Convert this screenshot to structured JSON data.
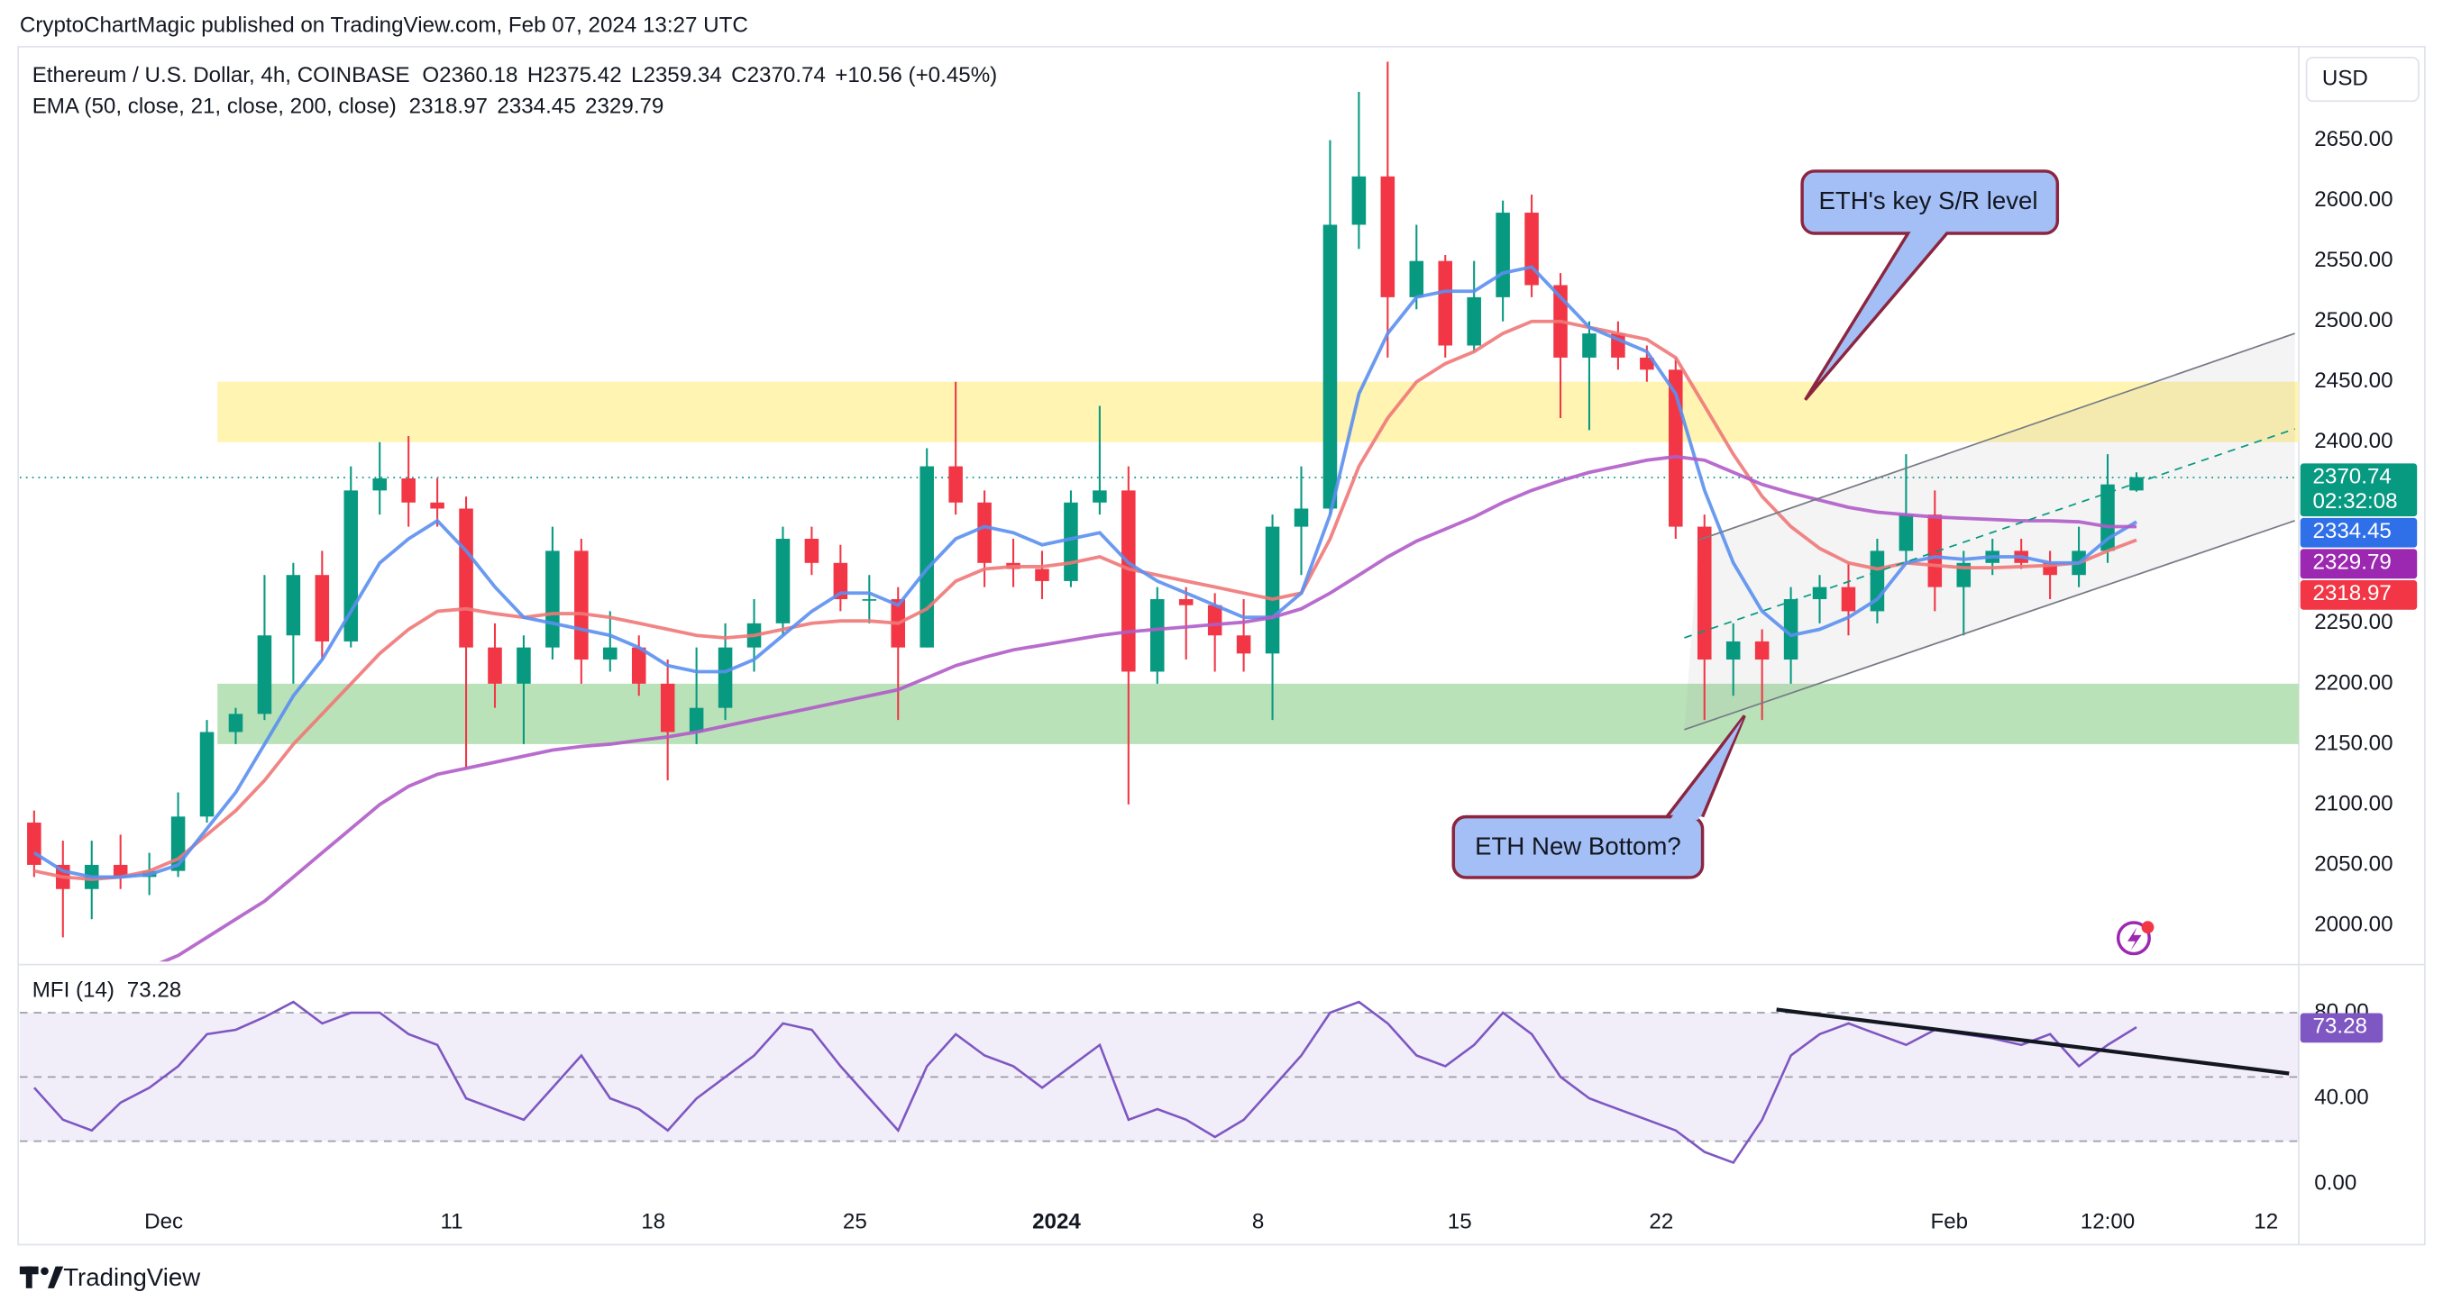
{
  "chart_data": {
    "type": "candlestick",
    "publisher": "CryptoChartMagic published on TradingView.com, Feb 07, 2024 13:27 UTC",
    "symbol": "Ethereum / U.S. Dollar, 4h, COINBASE",
    "ohlc_labels": [
      "O",
      "H",
      "L",
      "C"
    ],
    "ohlc": {
      "open": 2360.18,
      "high": 2375.42,
      "low": 2359.34,
      "close": 2370.74
    },
    "change": "+10.56 (+0.45%)",
    "ema_title": "EMA (50, close, 21, close, 200, close)",
    "currency": "USD",
    "countdown": "02:32:08",
    "brand": "TradingView",
    "up_color": "#089981",
    "down_color": "#f23645",
    "candles": {
      "open": [
        2085,
        2050,
        2030,
        2050,
        2040,
        2045,
        2090,
        2160,
        2175,
        2240,
        2290,
        2235,
        2360,
        2370,
        2350,
        2345,
        2230,
        2200,
        2230,
        2310,
        2220,
        2230,
        2200,
        2160,
        2180,
        2230,
        2250,
        2320,
        2300,
        2270,
        2270,
        2230,
        2380,
        2350,
        2300,
        2295,
        2285,
        2350,
        2360,
        2210,
        2270,
        2265,
        2240,
        2225,
        2330,
        2345,
        2580,
        2620,
        2520,
        2550,
        2480,
        2520,
        2590,
        2530,
        2470,
        2490,
        2470,
        2460,
        2330,
        2220,
        2235,
        2220,
        2270,
        2280,
        2260,
        2310,
        2340,
        2280,
        2300,
        2310,
        2300,
        2290,
        2310,
        2360
      ],
      "high": [
        2095,
        2070,
        2070,
        2075,
        2060,
        2110,
        2170,
        2180,
        2290,
        2300,
        2310,
        2380,
        2400,
        2405,
        2370,
        2355,
        2250,
        2240,
        2330,
        2320,
        2260,
        2240,
        2220,
        2230,
        2250,
        2270,
        2330,
        2330,
        2315,
        2290,
        2280,
        2395,
        2450,
        2360,
        2320,
        2310,
        2360,
        2430,
        2380,
        2280,
        2280,
        2275,
        2270,
        2340,
        2380,
        2650,
        2690,
        2715,
        2580,
        2555,
        2550,
        2600,
        2605,
        2540,
        2500,
        2500,
        2480,
        2470,
        2340,
        2250,
        2245,
        2280,
        2290,
        2300,
        2320,
        2390,
        2360,
        2310,
        2320,
        2320,
        2310,
        2330,
        2390,
        2375
      ],
      "low": [
        2040,
        1990,
        2005,
        2030,
        2025,
        2040,
        2085,
        2150,
        2170,
        2200,
        2220,
        2230,
        2340,
        2330,
        2330,
        2130,
        2180,
        2150,
        2220,
        2200,
        2210,
        2190,
        2120,
        2150,
        2170,
        2210,
        2240,
        2290,
        2260,
        2250,
        2170,
        2230,
        2340,
        2280,
        2280,
        2270,
        2280,
        2340,
        2100,
        2200,
        2220,
        2210,
        2210,
        2170,
        2290,
        2340,
        2560,
        2470,
        2510,
        2470,
        2475,
        2500,
        2520,
        2420,
        2410,
        2460,
        2450,
        2320,
        2170,
        2190,
        2170,
        2200,
        2250,
        2240,
        2250,
        2300,
        2260,
        2240,
        2290,
        2295,
        2270,
        2280,
        2300,
        2359
      ],
      "close": [
        2050,
        2030,
        2050,
        2040,
        2045,
        2090,
        2160,
        2175,
        2240,
        2290,
        2235,
        2360,
        2370,
        2350,
        2345,
        2230,
        2200,
        2230,
        2310,
        2220,
        2230,
        2200,
        2160,
        2180,
        2230,
        2250,
        2320,
        2300,
        2270,
        2270,
        2230,
        2380,
        2350,
        2300,
        2295,
        2285,
        2350,
        2360,
        2210,
        2270,
        2265,
        2240,
        2225,
        2330,
        2345,
        2580,
        2620,
        2520,
        2550,
        2480,
        2520,
        2590,
        2530,
        2470,
        2490,
        2470,
        2460,
        2330,
        2220,
        2235,
        2220,
        2270,
        2280,
        2260,
        2310,
        2340,
        2280,
        2300,
        2310,
        2300,
        2290,
        2310,
        2365,
        2371
      ]
    },
    "series": [
      {
        "name": "EMA 50",
        "color": "#f07878",
        "last": 2318.97,
        "values": [
          2045,
          2040,
          2038,
          2040,
          2045,
          2055,
          2075,
          2095,
          2120,
          2150,
          2175,
          2200,
          2225,
          2245,
          2260,
          2262,
          2258,
          2255,
          2258,
          2258,
          2255,
          2250,
          2245,
          2240,
          2238,
          2240,
          2245,
          2250,
          2252,
          2252,
          2250,
          2262,
          2285,
          2295,
          2297,
          2297,
          2300,
          2305,
          2295,
          2290,
          2285,
          2280,
          2275,
          2270,
          2275,
          2320,
          2380,
          2420,
          2450,
          2465,
          2475,
          2490,
          2500,
          2500,
          2495,
          2490,
          2485,
          2470,
          2430,
          2390,
          2355,
          2330,
          2312,
          2300,
          2295,
          2300,
          2298,
          2296,
          2296,
          2297,
          2298,
          2300,
          2310,
          2319
        ]
      },
      {
        "name": "EMA 21",
        "color": "#5b8ff0",
        "last": 2334.45,
        "values": [
          2060,
          2045,
          2040,
          2040,
          2042,
          2050,
          2080,
          2110,
          2150,
          2190,
          2220,
          2260,
          2300,
          2320,
          2335,
          2310,
          2280,
          2255,
          2250,
          2245,
          2240,
          2230,
          2215,
          2210,
          2210,
          2220,
          2240,
          2260,
          2275,
          2275,
          2265,
          2295,
          2320,
          2330,
          2325,
          2315,
          2320,
          2325,
          2300,
          2285,
          2275,
          2265,
          2255,
          2255,
          2275,
          2340,
          2440,
          2490,
          2520,
          2525,
          2525,
          2540,
          2545,
          2520,
          2495,
          2485,
          2475,
          2440,
          2360,
          2300,
          2260,
          2240,
          2245,
          2255,
          2270,
          2300,
          2305,
          2303,
          2305,
          2305,
          2300,
          2300,
          2320,
          2334
        ]
      },
      {
        "name": "EMA 200",
        "color": "#b05cc8",
        "last": 2329.79,
        "values": [
          1940,
          1945,
          1950,
          1958,
          1965,
          1975,
          1990,
          2005,
          2020,
          2040,
          2060,
          2080,
          2100,
          2115,
          2125,
          2130,
          2135,
          2140,
          2145,
          2148,
          2150,
          2153,
          2156,
          2160,
          2165,
          2170,
          2175,
          2180,
          2185,
          2190,
          2195,
          2205,
          2215,
          2222,
          2228,
          2232,
          2236,
          2240,
          2243,
          2245,
          2247,
          2249,
          2251,
          2255,
          2262,
          2275,
          2290,
          2305,
          2318,
          2328,
          2338,
          2350,
          2360,
          2368,
          2375,
          2380,
          2385,
          2388,
          2385,
          2375,
          2365,
          2358,
          2352,
          2346,
          2342,
          2340,
          2338,
          2337,
          2336,
          2335,
          2335,
          2334,
          2330,
          2330
        ]
      }
    ],
    "ylim": [
      1970,
      2721
    ],
    "yticks": [
      {
        "value": 2000,
        "label": "2000.00"
      },
      {
        "value": 2050,
        "label": "2050.00"
      },
      {
        "value": 2100,
        "label": "2100.00"
      },
      {
        "value": 2150,
        "label": "2150.00"
      },
      {
        "value": 2200,
        "label": "2200.00"
      },
      {
        "value": 2250,
        "label": "2250.00"
      },
      {
        "value": 2300,
        "label": "2300.00"
      },
      {
        "value": 2350,
        "label": "2350.00"
      },
      {
        "value": 2400,
        "label": "2400.00"
      },
      {
        "value": 2450,
        "label": "2450.00"
      },
      {
        "value": 2500,
        "label": "2500.00"
      },
      {
        "value": 2550,
        "label": "2550.00"
      },
      {
        "value": 2600,
        "label": "2600.00"
      },
      {
        "value": 2650,
        "label": "2650.00"
      }
    ],
    "xticks": [
      {
        "value": 5,
        "label": "Dec"
      },
      {
        "value": 15,
        "label": "11"
      },
      {
        "value": 22,
        "label": "18"
      },
      {
        "value": 29,
        "label": "25"
      },
      {
        "value": 36,
        "label": "2024"
      },
      {
        "value": 43,
        "label": "8"
      },
      {
        "value": 50,
        "label": "15"
      },
      {
        "value": 57,
        "label": "22"
      },
      {
        "value": 67,
        "label": "Feb"
      },
      {
        "value": 72.5,
        "label": "12:00"
      },
      {
        "value": 78,
        "label": "12"
      }
    ],
    "zones": [
      {
        "from": 2400,
        "to": 2450,
        "color": "#fff3a8"
      },
      {
        "from": 2150,
        "to": 2200,
        "color": "#b2dfb0"
      }
    ],
    "channel": [
      {
        "points": [
          [
            57.8,
            2162
          ],
          [
            79,
            2335
          ]
        ],
        "dash": false
      },
      {
        "points": [
          [
            58.3,
            2319
          ],
          [
            79,
            2490
          ]
        ],
        "dash": false
      },
      {
        "points": [
          [
            57.8,
            2238
          ],
          [
            79,
            2411
          ]
        ],
        "dash": true
      }
    ],
    "annotations": [
      "ETH's key S/R level",
      "ETH New Bottom?"
    ],
    "mfi": {
      "name": "MFI (14)",
      "last": 73.28,
      "color": "#7e57c2",
      "ylim": [
        -6.5,
        101
      ],
      "band": [
        20,
        80
      ],
      "mid": 50,
      "yticks": [
        {
          "value": 0,
          "label": "0.00"
        },
        {
          "value": 40,
          "label": "40.00"
        },
        {
          "value": 80,
          "label": "80.00"
        }
      ],
      "values": [
        45,
        30,
        25,
        38,
        45,
        55,
        70,
        72,
        78,
        85,
        75,
        80,
        80,
        70,
        65,
        40,
        35,
        30,
        45,
        60,
        40,
        35,
        25,
        40,
        50,
        60,
        75,
        72,
        55,
        40,
        25,
        55,
        70,
        60,
        55,
        45,
        55,
        65,
        30,
        35,
        30,
        22,
        30,
        45,
        60,
        80,
        85,
        75,
        60,
        55,
        65,
        80,
        70,
        50,
        40,
        35,
        30,
        25,
        15,
        10,
        30,
        60,
        70,
        75,
        70,
        65,
        72,
        70,
        68,
        65,
        70,
        55,
        65,
        73.28
      ],
      "trendline": [
        [
          61,
          81.5
        ],
        [
          78.8,
          51.6
        ]
      ]
    }
  }
}
